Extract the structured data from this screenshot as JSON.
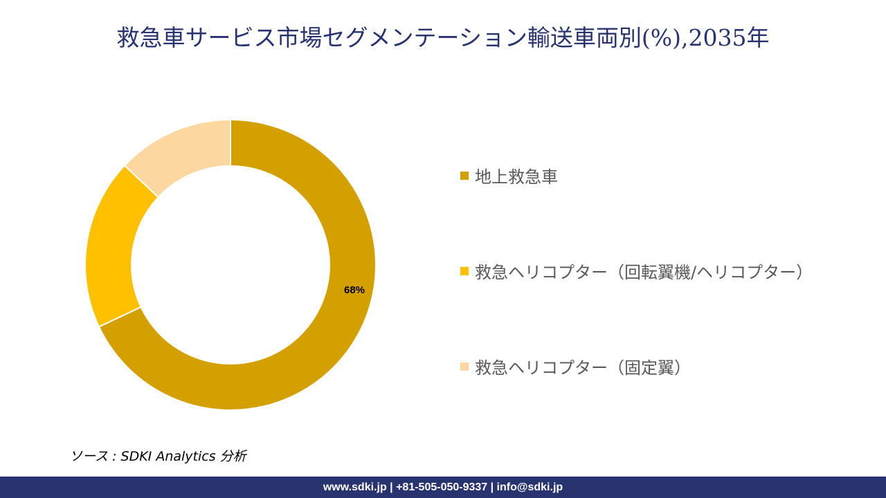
{
  "title": "救急車サービス市場セグメンテーション輸送車両別(%),2035年",
  "source": "ソース : SDKI Analytics 分析",
  "footer": "www.sdki.jp | +81-505-050-9337 | info@sdki.jp",
  "legend": [
    {
      "label": "地上救急車",
      "color": "#D4A000"
    },
    {
      "label": "救急ヘリコプター（回転翼機/ヘリコプター）",
      "color": "#FFC000"
    },
    {
      "label": "救急ヘリコプター（固定翼）",
      "color": "#FCD8A0"
    }
  ],
  "data_label": "68%",
  "chart_data": {
    "type": "pie",
    "subtype": "donut",
    "title": "救急車サービス市場セグメンテーション輸送車両別(%),2035年",
    "categories": [
      "地上救急車",
      "救急ヘリコプター（回転翼機/ヘリコプター）",
      "救急ヘリコプター（固定翼）"
    ],
    "values": [
      68,
      19,
      13
    ],
    "colors": [
      "#D4A000",
      "#FFC000",
      "#FCD8A0"
    ],
    "data_labels": [
      "68%",
      "",
      ""
    ],
    "legend_position": "right"
  }
}
